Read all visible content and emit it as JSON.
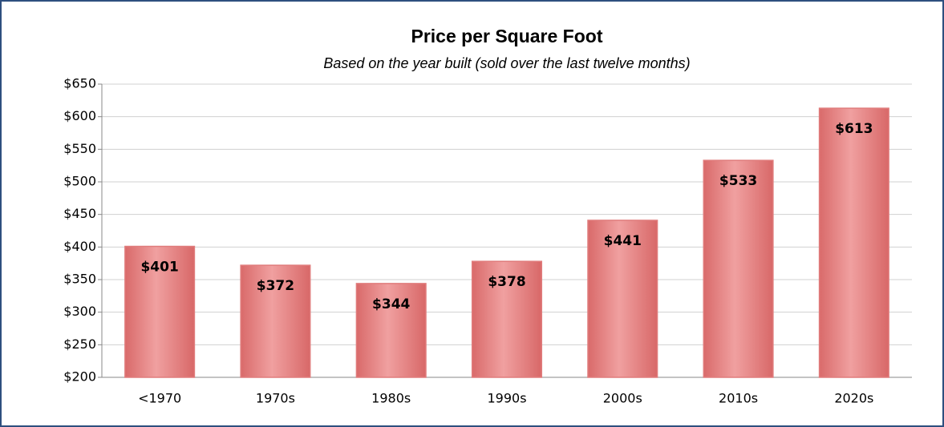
{
  "chart_data": {
    "type": "bar",
    "title": "Price per Square Foot",
    "subtitle": "Based on the year built (sold over the last twelve months)",
    "categories": [
      "<1970",
      "1970s",
      "1980s",
      "1990s",
      "2000s",
      "2010s",
      "2020s"
    ],
    "values": [
      401,
      372,
      344,
      378,
      441,
      533,
      613
    ],
    "value_labels": [
      "$401",
      "$372",
      "$344",
      "$378",
      "$441",
      "$533",
      "$613"
    ],
    "color": "#e07c7c",
    "ylim": [
      200,
      650
    ],
    "yticks": [
      {
        "value": 200,
        "label": "$200"
      },
      {
        "value": 250,
        "label": "$250"
      },
      {
        "value": 300,
        "label": "$300"
      },
      {
        "value": 350,
        "label": "$350"
      },
      {
        "value": 400,
        "label": "$400"
      },
      {
        "value": 450,
        "label": "$450"
      },
      {
        "value": 500,
        "label": "$500"
      },
      {
        "value": 550,
        "label": "$550"
      },
      {
        "value": 600,
        "label": "$600"
      },
      {
        "value": 650,
        "label": "$650"
      }
    ],
    "grid": true
  }
}
